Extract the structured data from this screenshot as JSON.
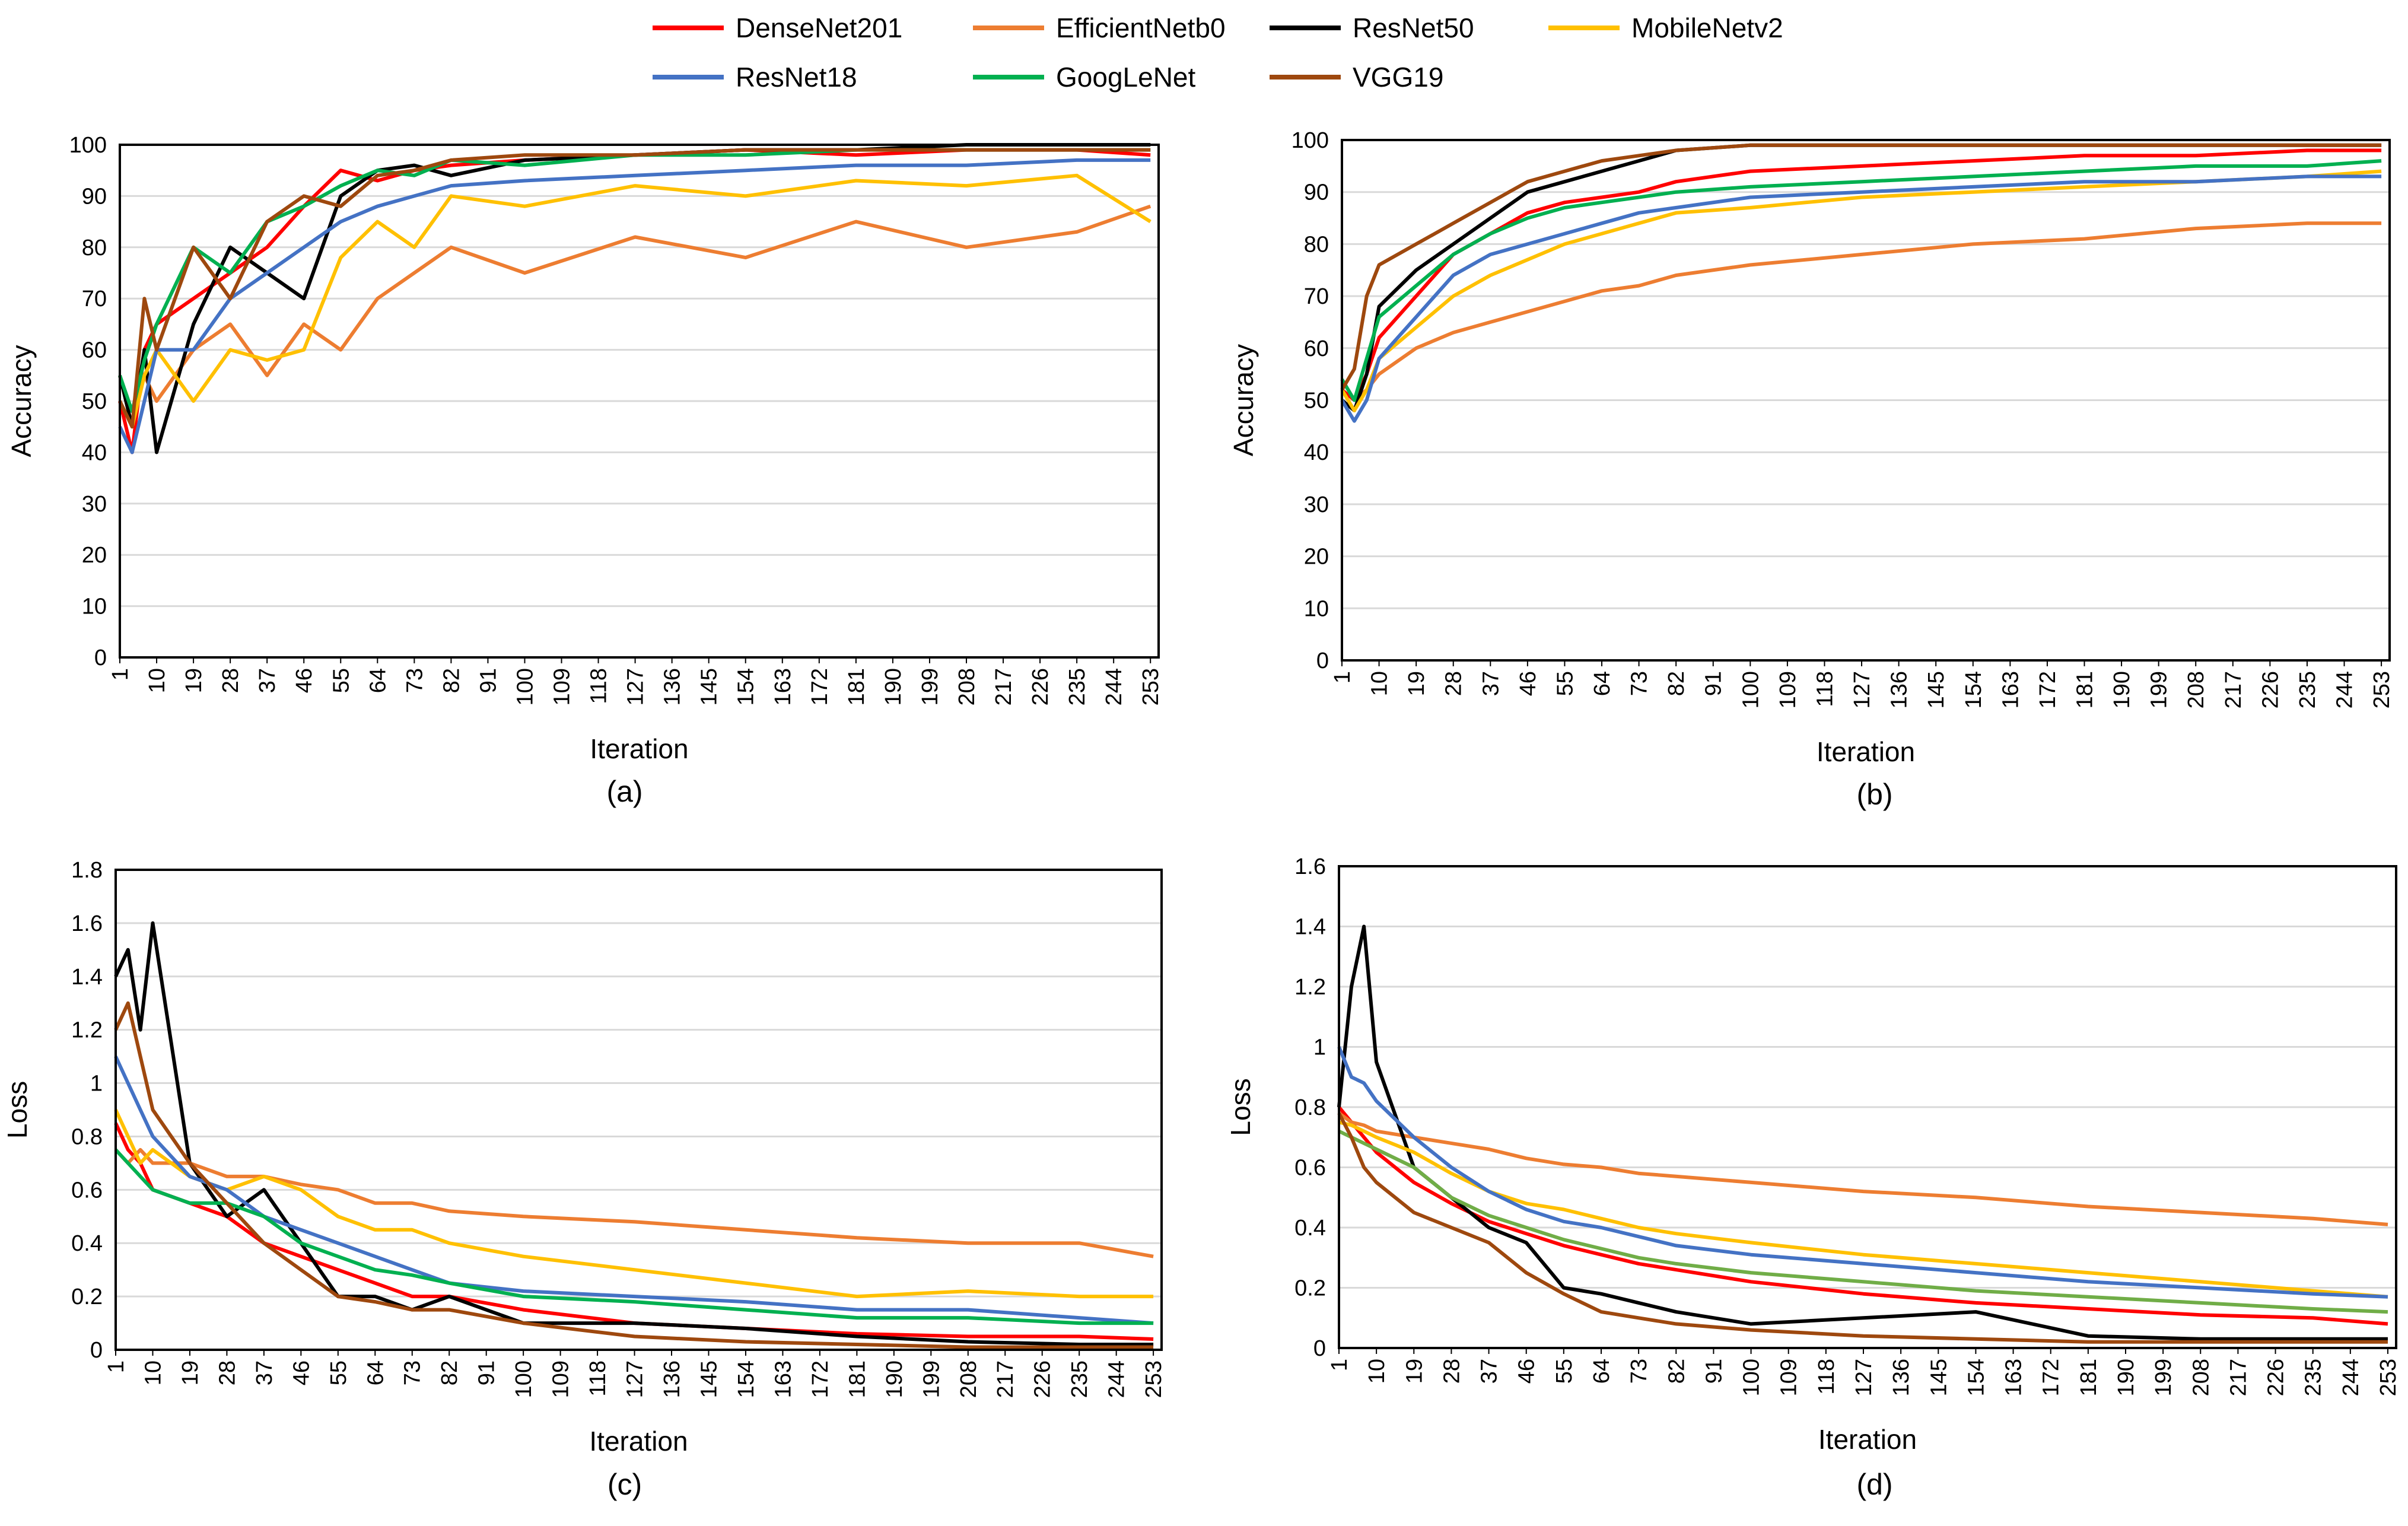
{
  "legend_order": [
    0,
    1,
    2,
    3,
    4,
    5,
    6
  ],
  "chart_data": [
    {
      "type": "line",
      "panel_label": "(a)",
      "xlabel": "Iteration",
      "ylabel": "Accuracy",
      "ylim": [
        0,
        100
      ],
      "yticks": [
        "0",
        "10",
        "20",
        "30",
        "40",
        "50",
        "60",
        "70",
        "80",
        "90",
        "100"
      ],
      "xlim": [
        1,
        255
      ],
      "xticks": [
        "1",
        "10",
        "19",
        "28",
        "37",
        "46",
        "55",
        "64",
        "73",
        "82",
        "91",
        "100",
        "109",
        "118",
        "127",
        "136",
        "145",
        "154",
        "163",
        "172",
        "181",
        "190",
        "199",
        "208",
        "217",
        "226",
        "235",
        "244",
        "253"
      ],
      "x": [
        1,
        4,
        7,
        10,
        19,
        28,
        37,
        46,
        55,
        64,
        73,
        82,
        100,
        127,
        154,
        181,
        208,
        235,
        253
      ],
      "series": [
        {
          "name": "DenseNet201",
          "color": "#ff0000",
          "values": [
            50,
            40,
            60,
            65,
            70,
            75,
            80,
            88,
            95,
            93,
            95,
            96,
            97,
            98,
            99,
            98,
            99,
            99,
            98
          ]
        },
        {
          "name": "EfficientNetb0",
          "color": "#ed7d31",
          "values": [
            55,
            45,
            55,
            50,
            60,
            65,
            55,
            65,
            60,
            70,
            75,
            80,
            75,
            82,
            78,
            85,
            80,
            83,
            88
          ]
        },
        {
          "name": "ResNet50",
          "color": "#000000",
          "values": [
            55,
            45,
            60,
            40,
            65,
            80,
            75,
            70,
            90,
            95,
            96,
            94,
            97,
            98,
            99,
            99,
            100,
            100,
            100
          ]
        },
        {
          "name": "MobileNetv2",
          "color": "#ffc000",
          "values": [
            50,
            45,
            55,
            60,
            50,
            60,
            58,
            60,
            78,
            85,
            80,
            90,
            88,
            92,
            90,
            93,
            92,
            94,
            85
          ]
        },
        {
          "name": "ResNet18",
          "color": "#4472c4",
          "values": [
            45,
            40,
            50,
            60,
            60,
            70,
            75,
            80,
            85,
            88,
            90,
            92,
            93,
            94,
            95,
            96,
            96,
            97,
            97
          ]
        },
        {
          "name": "GoogLeNet",
          "color": "#00b050",
          "values": [
            55,
            48,
            58,
            65,
            80,
            75,
            85,
            88,
            92,
            95,
            94,
            97,
            96,
            98,
            98,
            99,
            99,
            99,
            99
          ]
        },
        {
          "name": "VGG19",
          "color": "#9e480e",
          "values": [
            50,
            45,
            70,
            60,
            80,
            70,
            85,
            90,
            88,
            94,
            95,
            97,
            98,
            98,
            99,
            99,
            99,
            99,
            99
          ]
        }
      ]
    },
    {
      "type": "line",
      "panel_label": "(b)",
      "xlabel": "Iteration",
      "ylabel": "Accuracy",
      "ylim": [
        0,
        100
      ],
      "yticks": [
        "0",
        "10",
        "20",
        "30",
        "40",
        "50",
        "60",
        "70",
        "80",
        "90",
        "100"
      ],
      "xlim": [
        1,
        255
      ],
      "xticks": [
        "1",
        "10",
        "19",
        "28",
        "37",
        "46",
        "55",
        "64",
        "73",
        "82",
        "91",
        "100",
        "109",
        "118",
        "127",
        "136",
        "145",
        "154",
        "163",
        "172",
        "181",
        "190",
        "199",
        "208",
        "217",
        "226",
        "235",
        "244",
        "253"
      ],
      "x": [
        1,
        4,
        7,
        10,
        19,
        28,
        37,
        46,
        55,
        64,
        73,
        82,
        100,
        127,
        154,
        181,
        208,
        235,
        253
      ],
      "series": [
        {
          "name": "DenseNet201",
          "color": "#ff0000",
          "values": [
            52,
            50,
            55,
            62,
            70,
            78,
            82,
            86,
            88,
            89,
            90,
            92,
            94,
            95,
            96,
            97,
            97,
            98,
            98
          ]
        },
        {
          "name": "EfficientNetb0",
          "color": "#ed7d31",
          "values": [
            54,
            50,
            52,
            55,
            60,
            63,
            65,
            67,
            69,
            71,
            72,
            74,
            76,
            78,
            80,
            81,
            83,
            84,
            84
          ]
        },
        {
          "name": "ResNet50",
          "color": "#000000",
          "values": [
            50,
            48,
            55,
            68,
            75,
            80,
            85,
            90,
            92,
            94,
            96,
            98,
            99,
            99,
            99,
            99,
            99,
            99,
            99
          ]
        },
        {
          "name": "MobileNetv2",
          "color": "#ffc000",
          "values": [
            52,
            48,
            52,
            58,
            64,
            70,
            74,
            77,
            80,
            82,
            84,
            86,
            87,
            89,
            90,
            91,
            92,
            93,
            94
          ]
        },
        {
          "name": "ResNet18",
          "color": "#4472c4",
          "values": [
            50,
            46,
            50,
            58,
            66,
            74,
            78,
            80,
            82,
            84,
            86,
            87,
            89,
            90,
            91,
            92,
            92,
            93,
            93
          ]
        },
        {
          "name": "GoogLeNet",
          "color": "#00b050",
          "values": [
            54,
            50,
            58,
            66,
            72,
            78,
            82,
            85,
            87,
            88,
            89,
            90,
            91,
            92,
            93,
            94,
            95,
            95,
            96
          ]
        },
        {
          "name": "VGG19",
          "color": "#9e480e",
          "values": [
            52,
            56,
            70,
            76,
            80,
            84,
            88,
            92,
            94,
            96,
            97,
            98,
            99,
            99,
            99,
            99,
            99,
            99,
            99
          ]
        }
      ]
    },
    {
      "type": "line",
      "panel_label": "(c)",
      "xlabel": "Iteration",
      "ylabel": "Loss",
      "ylim": [
        0,
        1.8
      ],
      "yticks": [
        "0",
        "0.2",
        "0.4",
        "0.6",
        "0.8",
        "1",
        "1.2",
        "1.4",
        "1.6",
        "1.8"
      ],
      "xlim": [
        1,
        255
      ],
      "xticks": [
        "1",
        "10",
        "19",
        "28",
        "37",
        "46",
        "55",
        "64",
        "73",
        "82",
        "91",
        "100",
        "109",
        "118",
        "127",
        "136",
        "145",
        "154",
        "163",
        "172",
        "181",
        "190",
        "199",
        "208",
        "217",
        "226",
        "235",
        "244",
        "253"
      ],
      "x": [
        1,
        4,
        7,
        10,
        19,
        28,
        37,
        46,
        55,
        64,
        73,
        82,
        100,
        127,
        154,
        181,
        208,
        235,
        253
      ],
      "series": [
        {
          "name": "DenseNet201",
          "color": "#ff0000",
          "values": [
            0.85,
            0.75,
            0.7,
            0.6,
            0.55,
            0.5,
            0.4,
            0.35,
            0.3,
            0.25,
            0.2,
            0.2,
            0.15,
            0.1,
            0.08,
            0.06,
            0.05,
            0.05,
            0.04
          ]
        },
        {
          "name": "EfficientNetb0",
          "color": "#ed7d31",
          "values": [
            0.75,
            0.7,
            0.75,
            0.7,
            0.7,
            0.65,
            0.65,
            0.62,
            0.6,
            0.55,
            0.55,
            0.52,
            0.5,
            0.48,
            0.45,
            0.42,
            0.4,
            0.4,
            0.35
          ]
        },
        {
          "name": "ResNet50",
          "color": "#000000",
          "values": [
            1.4,
            1.5,
            1.2,
            1.6,
            0.7,
            0.5,
            0.6,
            0.4,
            0.2,
            0.2,
            0.15,
            0.2,
            0.1,
            0.1,
            0.08,
            0.05,
            0.03,
            0.02,
            0.02
          ]
        },
        {
          "name": "MobileNetv2",
          "color": "#ffc000",
          "values": [
            0.9,
            0.8,
            0.7,
            0.75,
            0.65,
            0.6,
            0.65,
            0.6,
            0.5,
            0.45,
            0.45,
            0.4,
            0.35,
            0.3,
            0.25,
            0.2,
            0.22,
            0.2,
            0.2
          ]
        },
        {
          "name": "ResNet18",
          "color": "#4472c4",
          "values": [
            1.1,
            1.0,
            0.9,
            0.8,
            0.65,
            0.6,
            0.5,
            0.45,
            0.4,
            0.35,
            0.3,
            0.25,
            0.22,
            0.2,
            0.18,
            0.15,
            0.15,
            0.12,
            0.1
          ]
        },
        {
          "name": "GoogLeNet",
          "color": "#00b050",
          "values": [
            0.75,
            0.7,
            0.65,
            0.6,
            0.55,
            0.55,
            0.5,
            0.4,
            0.35,
            0.3,
            0.28,
            0.25,
            0.2,
            0.18,
            0.15,
            0.12,
            0.12,
            0.1,
            0.1
          ]
        },
        {
          "name": "VGG19",
          "color": "#9e480e",
          "values": [
            1.2,
            1.3,
            1.1,
            0.9,
            0.7,
            0.55,
            0.4,
            0.3,
            0.2,
            0.18,
            0.15,
            0.15,
            0.1,
            0.05,
            0.03,
            0.02,
            0.01,
            0.01,
            0.01
          ]
        }
      ]
    },
    {
      "type": "line",
      "panel_label": "(d)",
      "xlabel": "Iteration",
      "ylabel": "Loss",
      "ylim": [
        0,
        1.6
      ],
      "yticks": [
        "0",
        "0.2",
        "0.4",
        "0.6",
        "0.8",
        "1",
        "1.2",
        "1.4",
        "1.6"
      ],
      "xlim": [
        1,
        255
      ],
      "xticks": [
        "1",
        "10",
        "19",
        "28",
        "37",
        "46",
        "55",
        "64",
        "73",
        "82",
        "91",
        "100",
        "109",
        "118",
        "127",
        "136",
        "145",
        "154",
        "163",
        "172",
        "181",
        "190",
        "199",
        "208",
        "217",
        "226",
        "235",
        "244",
        "253"
      ],
      "x": [
        1,
        4,
        7,
        10,
        19,
        28,
        37,
        46,
        55,
        64,
        73,
        82,
        100,
        127,
        154,
        181,
        208,
        235,
        253
      ],
      "series": [
        {
          "name": "DenseNet201",
          "color": "#ff0000",
          "values": [
            0.8,
            0.75,
            0.7,
            0.65,
            0.55,
            0.48,
            0.42,
            0.38,
            0.34,
            0.31,
            0.28,
            0.26,
            0.22,
            0.18,
            0.15,
            0.13,
            0.11,
            0.1,
            0.08
          ]
        },
        {
          "name": "EfficientNetb0",
          "color": "#ed7d31",
          "values": [
            0.78,
            0.75,
            0.74,
            0.72,
            0.7,
            0.68,
            0.66,
            0.63,
            0.61,
            0.6,
            0.58,
            0.57,
            0.55,
            0.52,
            0.5,
            0.47,
            0.45,
            0.43,
            0.41
          ]
        },
        {
          "name": "ResNet50",
          "color": "#000000",
          "values": [
            0.8,
            1.2,
            1.4,
            0.95,
            0.6,
            0.5,
            0.4,
            0.35,
            0.2,
            0.18,
            0.15,
            0.12,
            0.08,
            0.1,
            0.12,
            0.04,
            0.03,
            0.03,
            0.03
          ]
        },
        {
          "name": "MobileNetv2",
          "color": "#ffc000",
          "values": [
            0.75,
            0.74,
            0.72,
            0.7,
            0.65,
            0.58,
            0.52,
            0.48,
            0.46,
            0.43,
            0.4,
            0.38,
            0.35,
            0.31,
            0.28,
            0.25,
            0.22,
            0.19,
            0.17
          ]
        },
        {
          "name": "ResNet18",
          "color": "#4472c4",
          "values": [
            1.0,
            0.9,
            0.88,
            0.82,
            0.7,
            0.6,
            0.52,
            0.46,
            0.42,
            0.4,
            0.37,
            0.34,
            0.31,
            0.28,
            0.25,
            0.22,
            0.2,
            0.18,
            0.17
          ]
        },
        {
          "name": "GoogLeNet",
          "color": "#70ad47",
          "values": [
            0.72,
            0.7,
            0.68,
            0.66,
            0.6,
            0.5,
            0.44,
            0.4,
            0.36,
            0.33,
            0.3,
            0.28,
            0.25,
            0.22,
            0.19,
            0.17,
            0.15,
            0.13,
            0.12
          ]
        },
        {
          "name": "VGG19",
          "color": "#9e480e",
          "values": [
            0.78,
            0.7,
            0.6,
            0.55,
            0.45,
            0.4,
            0.35,
            0.25,
            0.18,
            0.12,
            0.1,
            0.08,
            0.06,
            0.04,
            0.03,
            0.02,
            0.02,
            0.02,
            0.02
          ]
        }
      ]
    }
  ]
}
